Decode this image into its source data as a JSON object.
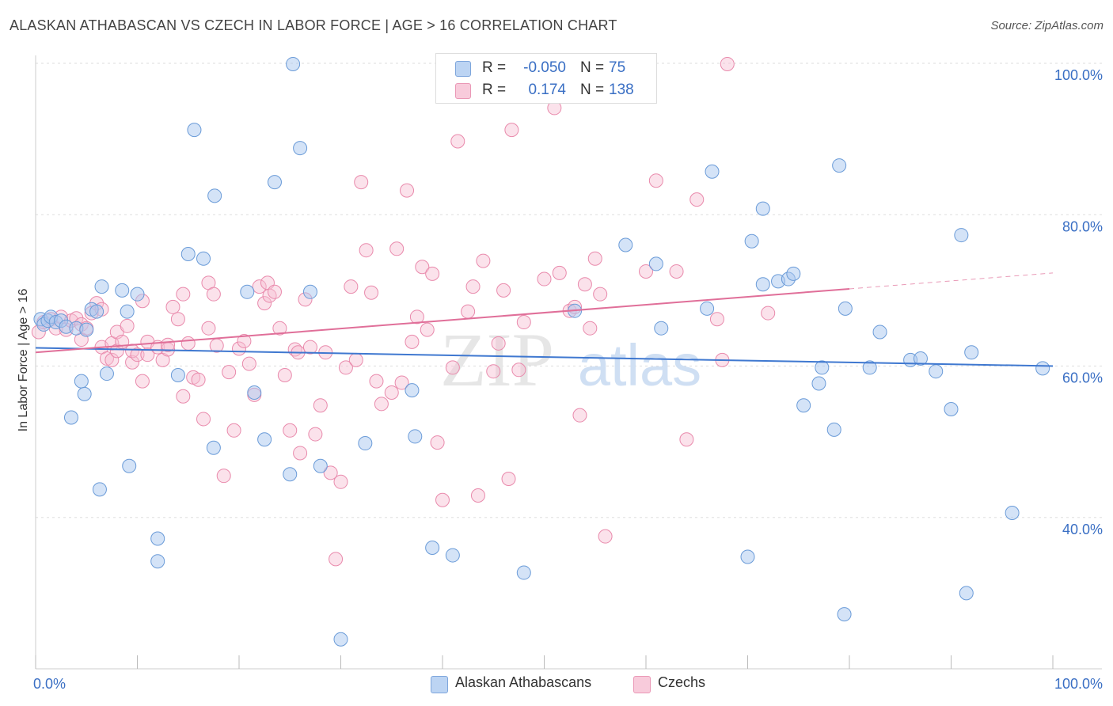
{
  "title": "ALASKAN ATHABASCAN VS CZECH IN LABOR FORCE | AGE > 16 CORRELATION CHART",
  "source": "Source: ZipAtlas.com",
  "watermark": {
    "zip": "ZIP",
    "atlas": "atlas"
  },
  "colors": {
    "blue_fill": "#a9c8f0",
    "blue_stroke": "#6a9bd8",
    "blue_line": "#3f78d0",
    "pink_fill": "#f6bfd2",
    "pink_stroke": "#e98aac",
    "pink_line": "#e06f99",
    "tick_label": "#3a6fc4",
    "grid": "#dddddd"
  },
  "legend": {
    "rows": [
      {
        "r_label": "R =",
        "r_value": "-0.050",
        "n_label": "N =",
        "n_value": "75"
      },
      {
        "r_label": "R =",
        "r_value": "0.174",
        "n_label": "N =",
        "n_value": "138"
      }
    ]
  },
  "bottom_legend": {
    "blue": "Alaskan Athabascans",
    "pink": "Czechs"
  },
  "chart_data": {
    "type": "scatter",
    "xlabel": "",
    "ylabel": "In Labor Force | Age > 16",
    "xlim": [
      0,
      100
    ],
    "ylim": [
      20,
      100
    ],
    "x_ticks": [
      {
        "value": 0,
        "label": "0.0%"
      },
      {
        "value": 100,
        "label": "100.0%"
      }
    ],
    "y_ticks": [
      {
        "value": 100,
        "label": "100.0%"
      },
      {
        "value": 80,
        "label": "80.0%"
      },
      {
        "value": 60,
        "label": "60.0%"
      },
      {
        "value": 40,
        "label": "40.0%"
      }
    ],
    "grid": true,
    "legend_position": "top-center",
    "series": [
      {
        "name": "Alaskan Athabascans",
        "color": "#a9c8f0",
        "r": -0.05,
        "n": 75,
        "trend": {
          "x": [
            0,
            100
          ],
          "y": [
            62.4,
            60.0
          ]
        },
        "points": [
          [
            0.5,
            66.2
          ],
          [
            0.8,
            65.5
          ],
          [
            1.2,
            66.0
          ],
          [
            1.5,
            66.5
          ],
          [
            2.0,
            65.8
          ],
          [
            2.5,
            66.0
          ],
          [
            3.0,
            65.2
          ],
          [
            3.5,
            53.2
          ],
          [
            4.0,
            65.0
          ],
          [
            4.5,
            58.0
          ],
          [
            4.8,
            56.3
          ],
          [
            5.0,
            64.8
          ],
          [
            5.5,
            67.5
          ],
          [
            6.0,
            67.2
          ],
          [
            6.3,
            43.7
          ],
          [
            6.5,
            70.5
          ],
          [
            7.0,
            59.0
          ],
          [
            8.5,
            70.0
          ],
          [
            9.0,
            67.2
          ],
          [
            9.2,
            46.8
          ],
          [
            10.0,
            69.5
          ],
          [
            12.0,
            37.2
          ],
          [
            12.0,
            34.2
          ],
          [
            14.0,
            58.8
          ],
          [
            15.0,
            74.8
          ],
          [
            15.6,
            91.2
          ],
          [
            16.5,
            74.2
          ],
          [
            17.5,
            49.2
          ],
          [
            17.6,
            82.5
          ],
          [
            20.8,
            69.8
          ],
          [
            21.5,
            56.5
          ],
          [
            22.5,
            50.3
          ],
          [
            23.5,
            84.3
          ],
          [
            25.0,
            45.7
          ],
          [
            25.3,
            99.9
          ],
          [
            26.0,
            88.8
          ],
          [
            27.0,
            69.8
          ],
          [
            28.0,
            46.8
          ],
          [
            30.0,
            23.9
          ],
          [
            32.4,
            49.8
          ],
          [
            37.0,
            56.8
          ],
          [
            37.3,
            50.7
          ],
          [
            39.0,
            36.0
          ],
          [
            41.0,
            35.0
          ],
          [
            48.0,
            32.7
          ],
          [
            53.0,
            67.3
          ],
          [
            58.0,
            76.0
          ],
          [
            61.0,
            73.5
          ],
          [
            61.5,
            65.0
          ],
          [
            66.0,
            67.6
          ],
          [
            66.5,
            85.7
          ],
          [
            70.0,
            34.8
          ],
          [
            70.4,
            76.5
          ],
          [
            71.5,
            80.8
          ],
          [
            71.5,
            70.8
          ],
          [
            73.0,
            71.2
          ],
          [
            74.0,
            71.5
          ],
          [
            74.5,
            72.2
          ],
          [
            75.5,
            54.8
          ],
          [
            77.0,
            57.7
          ],
          [
            77.3,
            59.8
          ],
          [
            78.5,
            51.6
          ],
          [
            79.0,
            86.5
          ],
          [
            79.5,
            27.2
          ],
          [
            79.6,
            67.6
          ],
          [
            82.0,
            59.8
          ],
          [
            83.0,
            64.5
          ],
          [
            86.0,
            60.8
          ],
          [
            87.0,
            61.0
          ],
          [
            88.5,
            59.3
          ],
          [
            90.0,
            54.3
          ],
          [
            91.0,
            77.3
          ],
          [
            91.5,
            30.0
          ],
          [
            92.0,
            61.8
          ],
          [
            96.0,
            40.6
          ],
          [
            99.0,
            59.7
          ]
        ]
      },
      {
        "name": "Czechs",
        "color": "#f6bfd2",
        "r": 0.174,
        "n": 138,
        "trend": {
          "x": [
            0,
            80
          ],
          "y": [
            61.8,
            70.2
          ]
        },
        "trend_dashed": {
          "x": [
            80,
            100
          ],
          "y": [
            70.2,
            72.3
          ]
        },
        "points": [
          [
            0.3,
            64.5
          ],
          [
            0.8,
            65.8
          ],
          [
            1.5,
            66.2
          ],
          [
            2.0,
            65.0
          ],
          [
            2.5,
            66.5
          ],
          [
            3.0,
            64.8
          ],
          [
            3.5,
            66.0
          ],
          [
            4.0,
            66.3
          ],
          [
            4.5,
            63.5
          ],
          [
            4.5,
            65.5
          ],
          [
            5.0,
            65.0
          ],
          [
            5.5,
            67.0
          ],
          [
            6.0,
            68.3
          ],
          [
            6.5,
            62.5
          ],
          [
            6.5,
            67.5
          ],
          [
            7.0,
            61.0
          ],
          [
            7.5,
            63.0
          ],
          [
            7.5,
            60.8
          ],
          [
            8.0,
            64.5
          ],
          [
            8.0,
            62.0
          ],
          [
            8.5,
            63.2
          ],
          [
            9.0,
            65.3
          ],
          [
            9.5,
            60.5
          ],
          [
            9.5,
            62.0
          ],
          [
            10.0,
            61.5
          ],
          [
            10.5,
            68.6
          ],
          [
            10.5,
            58.0
          ],
          [
            11.0,
            63.2
          ],
          [
            11.0,
            61.5
          ],
          [
            12.0,
            62.5
          ],
          [
            12.5,
            60.8
          ],
          [
            13.0,
            62.2
          ],
          [
            13.0,
            62.8
          ],
          [
            13.5,
            67.8
          ],
          [
            14.0,
            66.2
          ],
          [
            14.5,
            69.5
          ],
          [
            14.5,
            56.0
          ],
          [
            15.0,
            63.0
          ],
          [
            15.5,
            58.5
          ],
          [
            16.0,
            58.2
          ],
          [
            16.5,
            53.0
          ],
          [
            17.0,
            71.0
          ],
          [
            17.0,
            65.0
          ],
          [
            17.5,
            69.5
          ],
          [
            17.8,
            62.7
          ],
          [
            18.5,
            45.5
          ],
          [
            19.0,
            59.2
          ],
          [
            19.5,
            51.5
          ],
          [
            20.0,
            62.3
          ],
          [
            20.5,
            63.3
          ],
          [
            21.0,
            60.3
          ],
          [
            21.5,
            56.2
          ],
          [
            22.0,
            70.5
          ],
          [
            22.5,
            68.3
          ],
          [
            22.8,
            71.0
          ],
          [
            23.0,
            69.3
          ],
          [
            23.5,
            69.8
          ],
          [
            24.0,
            65.0
          ],
          [
            24.5,
            58.8
          ],
          [
            25.0,
            51.5
          ],
          [
            25.5,
            62.2
          ],
          [
            25.8,
            61.8
          ],
          [
            26.0,
            48.5
          ],
          [
            26.5,
            68.8
          ],
          [
            27.0,
            62.5
          ],
          [
            27.5,
            51.0
          ],
          [
            28.0,
            54.8
          ],
          [
            28.5,
            61.8
          ],
          [
            29.0,
            45.9
          ],
          [
            29.5,
            34.5
          ],
          [
            30.0,
            44.7
          ],
          [
            30.5,
            59.8
          ],
          [
            31.0,
            70.5
          ],
          [
            31.5,
            60.8
          ],
          [
            32.0,
            84.3
          ],
          [
            32.5,
            75.3
          ],
          [
            33.0,
            69.7
          ],
          [
            33.5,
            58.0
          ],
          [
            34.0,
            55.0
          ],
          [
            35.0,
            56.5
          ],
          [
            35.5,
            75.5
          ],
          [
            36.0,
            57.8
          ],
          [
            36.5,
            83.2
          ],
          [
            37.0,
            63.2
          ],
          [
            37.5,
            66.5
          ],
          [
            38.0,
            73.1
          ],
          [
            38.5,
            64.8
          ],
          [
            39.0,
            72.2
          ],
          [
            39.5,
            49.9
          ],
          [
            40.0,
            42.3
          ],
          [
            41.0,
            59.8
          ],
          [
            41.5,
            89.7
          ],
          [
            42.5,
            67.2
          ],
          [
            43.0,
            70.5
          ],
          [
            43.5,
            42.9
          ],
          [
            44.0,
            73.9
          ],
          [
            45.0,
            59.3
          ],
          [
            45.5,
            63.0
          ],
          [
            46.0,
            70.0
          ],
          [
            46.5,
            45.1
          ],
          [
            46.8,
            91.2
          ],
          [
            47.5,
            59.5
          ],
          [
            48.0,
            65.8
          ],
          [
            50.0,
            71.5
          ],
          [
            51.0,
            94.1
          ],
          [
            51.5,
            72.3
          ],
          [
            52.5,
            67.3
          ],
          [
            53.0,
            67.8
          ],
          [
            53.5,
            53.5
          ],
          [
            54.0,
            70.8
          ],
          [
            54.5,
            65.0
          ],
          [
            55.0,
            74.2
          ],
          [
            55.5,
            69.5
          ],
          [
            56.0,
            37.5
          ],
          [
            60.0,
            72.5
          ],
          [
            61.0,
            84.5
          ],
          [
            63.0,
            72.5
          ],
          [
            64.0,
            50.3
          ],
          [
            65.0,
            82.0
          ],
          [
            67.0,
            66.2
          ],
          [
            67.5,
            60.8
          ],
          [
            68.0,
            99.9
          ],
          [
            72.0,
            67.0
          ]
        ]
      }
    ]
  }
}
